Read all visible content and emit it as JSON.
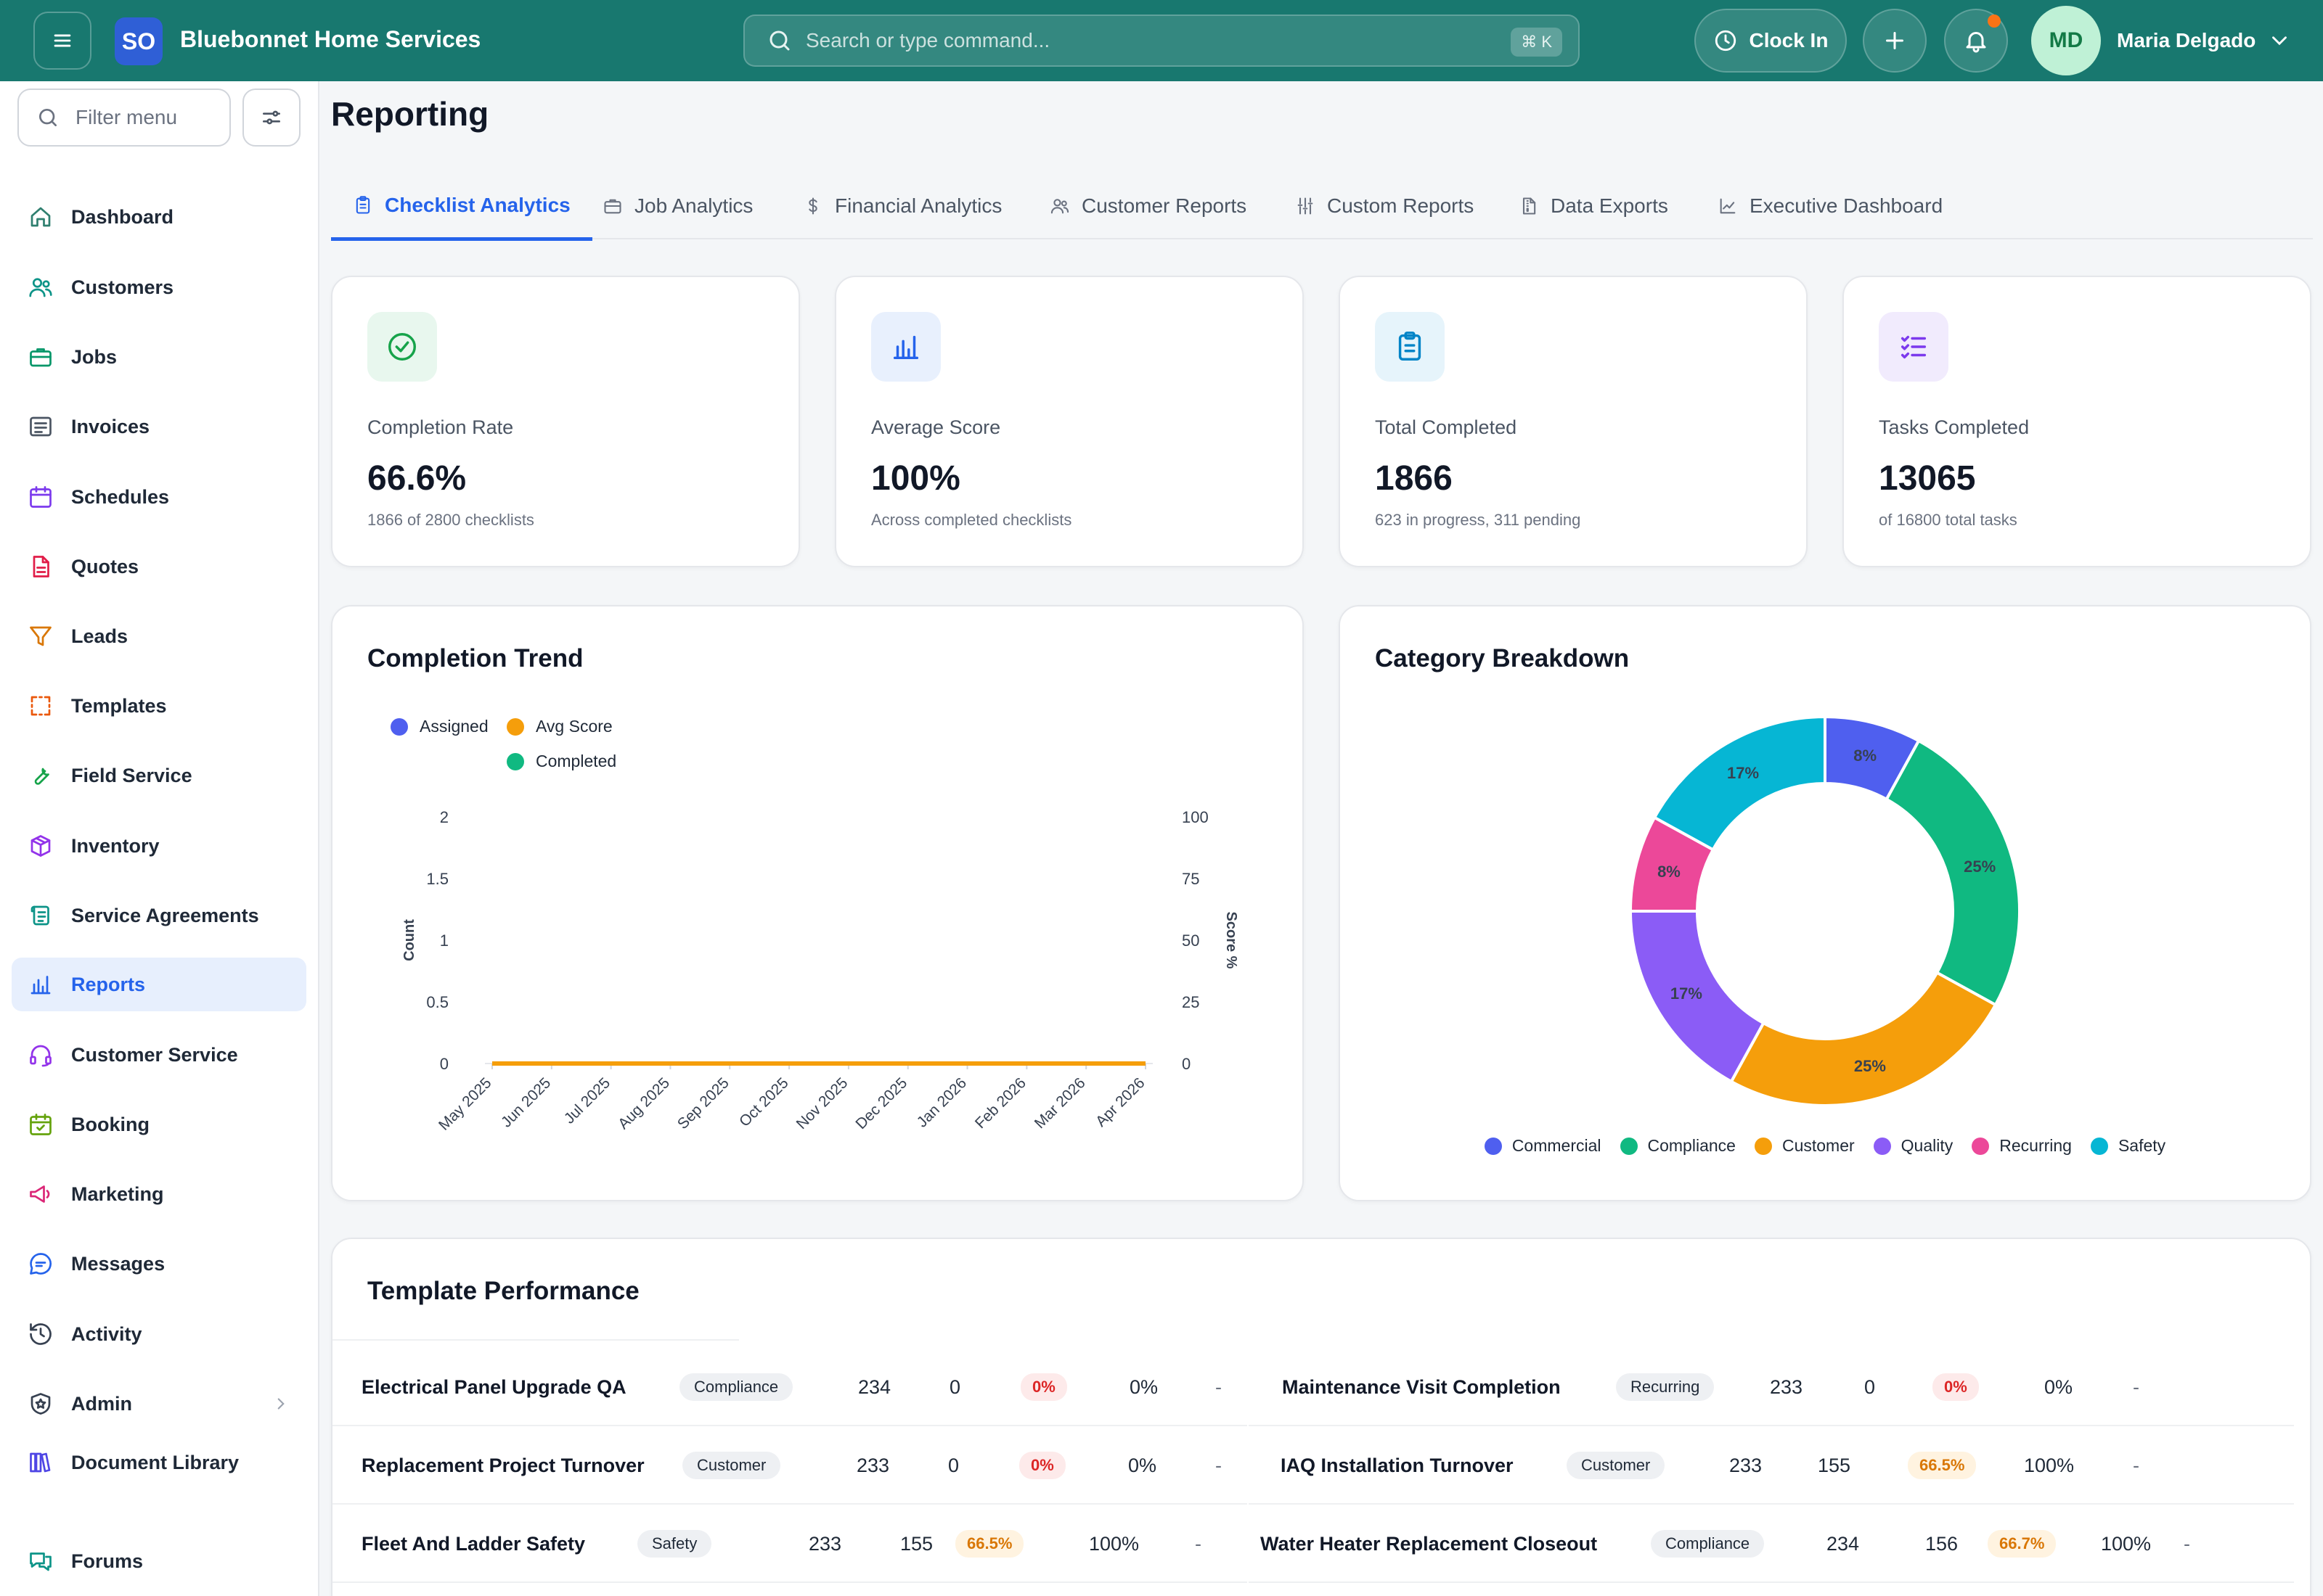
{
  "app": {
    "brand_initials": "SO",
    "brand_name": "Bluebonnet Home Services",
    "search_placeholder": "Search or type command...",
    "search_shortcut": "⌘ K",
    "clock_in_label": "Clock In",
    "user_initials": "MD",
    "user_name": "Maria Delgado"
  },
  "sidebar": {
    "filter_placeholder": "Filter menu",
    "items": [
      {
        "label": "Dashboard",
        "icon": "home-icon",
        "color": "#2f7f6f"
      },
      {
        "label": "Customers",
        "icon": "users-icon",
        "color": "#0d9488"
      },
      {
        "label": "Jobs",
        "icon": "briefcase-icon",
        "color": "#059669"
      },
      {
        "label": "Invoices",
        "icon": "invoice-icon",
        "color": "#4b5563"
      },
      {
        "label": "Schedules",
        "icon": "calendar-icon",
        "color": "#7c3aed"
      },
      {
        "label": "Quotes",
        "icon": "file-icon",
        "color": "#e11d48"
      },
      {
        "label": "Leads",
        "icon": "funnel-icon",
        "color": "#d97706"
      },
      {
        "label": "Templates",
        "icon": "template-icon",
        "color": "#ea580c"
      },
      {
        "label": "Field Service",
        "icon": "wrench-icon",
        "color": "#16a34a"
      },
      {
        "label": "Inventory",
        "icon": "box-icon",
        "color": "#9333ea"
      },
      {
        "label": "Service Agreements",
        "icon": "scroll-icon",
        "color": "#0d9488"
      },
      {
        "label": "Reports",
        "icon": "bar-chart-icon",
        "color": "#2563eb"
      },
      {
        "label": "Customer Service",
        "icon": "headset-icon",
        "color": "#9333ea"
      },
      {
        "label": "Booking",
        "icon": "calendar-check-icon",
        "color": "#65a30d"
      },
      {
        "label": "Marketing",
        "icon": "megaphone-icon",
        "color": "#db2777"
      },
      {
        "label": "Messages",
        "icon": "chat-icon",
        "color": "#2563eb"
      },
      {
        "label": "Activity",
        "icon": "history-icon",
        "color": "#374151"
      },
      {
        "label": "Admin",
        "icon": "shield-icon",
        "color": "#374151"
      },
      {
        "label": "Document Library",
        "icon": "library-icon",
        "color": "#4f46e5"
      },
      {
        "label": "Forums",
        "icon": "forum-icon",
        "color": "#0d9488"
      }
    ],
    "active_index": 11
  },
  "page": {
    "title": "Reporting",
    "tabs": [
      {
        "label": "Checklist Analytics",
        "icon": "clipboard-icon"
      },
      {
        "label": "Job Analytics",
        "icon": "briefcase-icon"
      },
      {
        "label": "Financial Analytics",
        "icon": "dollar-icon"
      },
      {
        "label": "Customer Reports",
        "icon": "users-icon"
      },
      {
        "label": "Custom Reports",
        "icon": "sliders-icon"
      },
      {
        "label": "Data Exports",
        "icon": "file-zip-icon"
      },
      {
        "label": "Executive Dashboard",
        "icon": "trend-icon"
      }
    ],
    "active_tab": 0
  },
  "kpis": [
    {
      "label": "Completion Rate",
      "value": "66.6%",
      "sub": "1866 of 2800 checklists",
      "icon": "check-circle-icon",
      "color": "#16a34a",
      "bg": "#e8f7ee"
    },
    {
      "label": "Average Score",
      "value": "100%",
      "sub": "Across completed checklists",
      "icon": "bar-chart-icon",
      "color": "#2563eb",
      "bg": "#e8f0fd"
    },
    {
      "label": "Total Completed",
      "value": "1866",
      "sub": "623 in progress, 311 pending",
      "icon": "clipboard-icon",
      "color": "#0284c7",
      "bg": "#e6f4fb"
    },
    {
      "label": "Tasks Completed",
      "value": "13065",
      "sub": "of 16800 total tasks",
      "icon": "list-check-icon",
      "color": "#7c3aed",
      "bg": "#f1ebfd"
    }
  ],
  "trend": {
    "title": "Completion Trend",
    "legend": [
      {
        "name": "Assigned",
        "color": "#4f5fef"
      },
      {
        "name": "Avg Score",
        "color": "#f59e0b"
      },
      {
        "name": "Completed",
        "color": "#10b981"
      }
    ]
  },
  "chart_data": [
    {
      "type": "line",
      "title": "Completion Trend",
      "x": [
        "May 2025",
        "Jun 2025",
        "Jul 2025",
        "Aug 2025",
        "Sep 2025",
        "Oct 2025",
        "Nov 2025",
        "Dec 2025",
        "Jan 2026",
        "Feb 2026",
        "Mar 2026",
        "Apr 2026"
      ],
      "ylabel": "Count",
      "y2label": "Score %",
      "ylim": [
        0,
        2
      ],
      "y2lim": [
        0,
        100
      ],
      "yticks": [
        "0",
        "0.5",
        "1",
        "1.5",
        "2"
      ],
      "y2ticks": [
        "0",
        "25",
        "50",
        "75",
        "100"
      ],
      "series": [
        {
          "name": "Assigned",
          "axis": "left",
          "values": [
            0,
            0,
            0,
            0,
            0,
            0,
            0,
            0,
            0,
            0,
            0,
            0
          ]
        },
        {
          "name": "Avg Score",
          "axis": "right",
          "values": [
            0,
            0,
            0,
            0,
            0,
            0,
            0,
            0,
            0,
            0,
            0,
            0
          ]
        },
        {
          "name": "Completed",
          "axis": "left",
          "values": [
            0,
            0,
            0,
            0,
            0,
            0,
            0,
            0,
            0,
            0,
            0,
            0
          ]
        }
      ],
      "legend": "top-left",
      "grid": false
    },
    {
      "type": "pie",
      "title": "Category Breakdown",
      "donut": true,
      "slices": [
        {
          "name": "Commercial",
          "value": 8,
          "label": "8%",
          "color": "#4f5fef"
        },
        {
          "name": "Compliance",
          "value": 25,
          "label": "25%",
          "color": "#10b981"
        },
        {
          "name": "Customer",
          "value": 25,
          "label": "25%",
          "color": "#f59e0b"
        },
        {
          "name": "Quality",
          "value": 17,
          "label": "17%",
          "color": "#8b5cf6"
        },
        {
          "name": "Recurring",
          "value": 8,
          "label": "8%",
          "color": "#ec4899"
        },
        {
          "name": "Safety",
          "value": 17,
          "label": "17%",
          "color": "#06b6d4"
        }
      ],
      "legend": "bottom"
    }
  ],
  "table": {
    "title": "Template Performance",
    "left": [
      {
        "name": "Electrical Panel Upgrade QA",
        "category": "Compliance",
        "total": "234",
        "completed": "0",
        "rate": "0%",
        "rate_tone": "red",
        "score": "0%",
        "trend": "-"
      },
      {
        "name": "Replacement Project Turnover",
        "category": "Customer",
        "total": "233",
        "completed": "0",
        "rate": "0%",
        "rate_tone": "red",
        "score": "0%",
        "trend": "-"
      },
      {
        "name": "Fleet And Ladder Safety",
        "category": "Safety",
        "total": "233",
        "completed": "155",
        "rate": "66.5%",
        "rate_tone": "amber",
        "score": "100%",
        "trend": "-"
      }
    ],
    "right": [
      {
        "name": "Maintenance Visit Completion",
        "category": "Recurring",
        "total": "233",
        "completed": "0",
        "rate": "0%",
        "rate_tone": "red",
        "score": "0%",
        "trend": "-"
      },
      {
        "name": "IAQ Installation Turnover",
        "category": "Customer",
        "total": "233",
        "completed": "155",
        "rate": "66.5%",
        "rate_tone": "amber",
        "score": "100%",
        "trend": "-"
      },
      {
        "name": "Water Heater Replacement Closeout",
        "category": "Compliance",
        "total": "234",
        "completed": "156",
        "rate": "66.7%",
        "rate_tone": "amber",
        "score": "100%",
        "trend": "-"
      }
    ]
  }
}
